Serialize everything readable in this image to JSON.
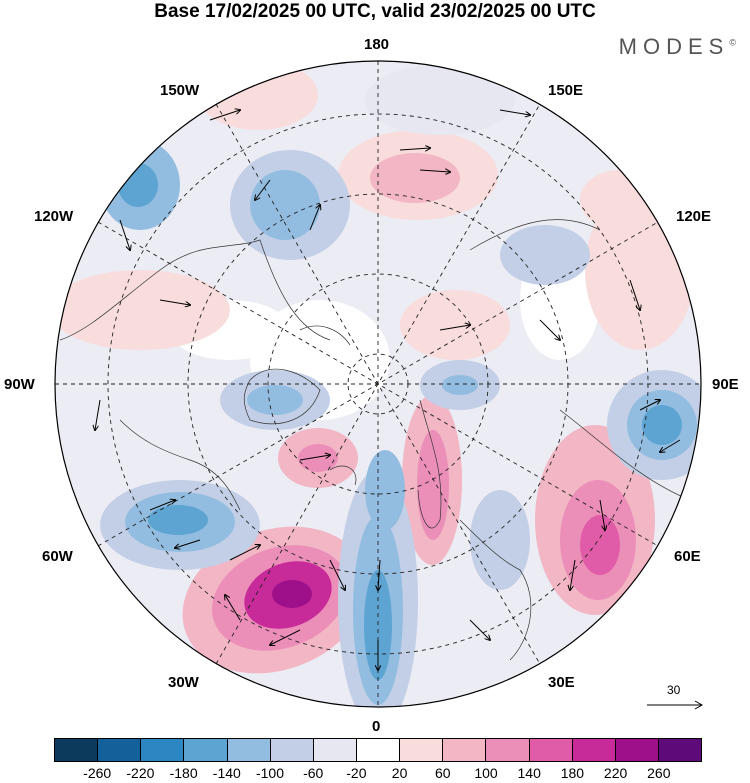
{
  "title": "Base 17/02/2025 00 UTC, valid 23/02/2025 00 UTC",
  "brand": "MODES",
  "brand_mark": "©",
  "longitude_labels": {
    "top": "180",
    "bottom": "0",
    "left": "90W",
    "right": "90E",
    "upper_left_1": "150W",
    "upper_left_2": "120W",
    "lower_left_1": "60W",
    "lower_left_2": "30W",
    "upper_right_1": "150E",
    "upper_right_2": "120E",
    "lower_right_1": "60E",
    "lower_right_2": "30E"
  },
  "reference_vector_label": "30",
  "colorbar": {
    "colors": [
      "#0c3a5c",
      "#14609a",
      "#2b86c2",
      "#5da4d2",
      "#93bde0",
      "#c3cfe6",
      "#e7e7f2",
      "#ffffff",
      "#f9dcdc",
      "#f2b6c4",
      "#ec8fb8",
      "#e15ca8",
      "#c72a99",
      "#9e0f8a",
      "#5e0a78"
    ],
    "tick_labels": [
      "-260",
      "-220",
      "-180",
      "-140",
      "-100",
      "-60",
      "-20",
      "20",
      "60",
      "100",
      "140",
      "180",
      "220",
      "260"
    ]
  }
}
